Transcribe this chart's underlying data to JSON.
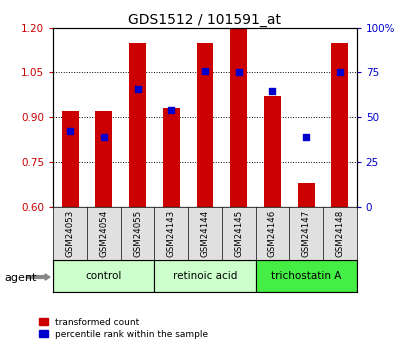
{
  "title": "GDS1512 / 101591_at",
  "samples": [
    "GSM24053",
    "GSM24054",
    "GSM24055",
    "GSM24143",
    "GSM24144",
    "GSM24145",
    "GSM24146",
    "GSM24147",
    "GSM24148"
  ],
  "red_bar_tops": [
    0.92,
    0.92,
    1.15,
    0.93,
    1.15,
    1.2,
    0.97,
    0.68,
    1.15
  ],
  "blue_y_vals": [
    0.855,
    0.835,
    0.995,
    0.925,
    1.055,
    1.052,
    0.988,
    0.835,
    1.05
  ],
  "ylim_left": [
    0.6,
    1.2
  ],
  "ylim_right": [
    0,
    100
  ],
  "yticks_left": [
    0.6,
    0.75,
    0.9,
    1.05,
    1.2
  ],
  "yticks_right": [
    0,
    25,
    50,
    75,
    100
  ],
  "ytick_labels_right": [
    "0",
    "25",
    "50",
    "75",
    "100%"
  ],
  "bar_color": "#cc0000",
  "blue_color": "#0000cc",
  "bar_bottom": 0.6,
  "bg_color": "#ffffff",
  "tick_color_left": "#cc0000",
  "tick_color_right": "#0000cc",
  "group_defs": [
    {
      "start": 0,
      "end": 2,
      "label": "control",
      "color": "#ccffcc"
    },
    {
      "start": 3,
      "end": 5,
      "label": "retinoic acid",
      "color": "#ccffcc"
    },
    {
      "start": 6,
      "end": 8,
      "label": "trichostatin A",
      "color": "#44ee44"
    }
  ],
  "legend_labels": [
    "transformed count",
    "percentile rank within the sample"
  ]
}
